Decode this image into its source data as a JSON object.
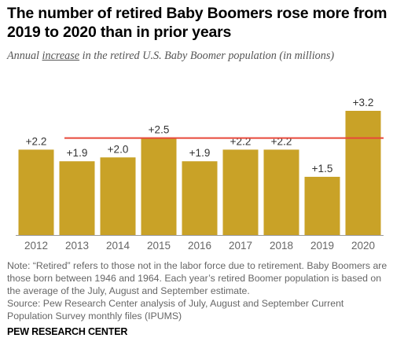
{
  "header": {
    "title": "The number of retired Baby Boomers rose more from 2019 to 2020 than in prior years",
    "subtitle_pre": "Annual ",
    "subtitle_emph": "increase",
    "subtitle_post": " in the retired U.S. Baby Boomer population (in millions)"
  },
  "notes": {
    "note": "Note: “Retired” refers to those not in the labor force due to retirement. Baby Boomers are those born between 1946 and 1964. Each year’s retired Boomer population is based on the average of the July, August and September estimate.",
    "source": "Source: Pew Research Center analysis of July, August and September Current Population Survey monthly files (IPUMS)"
  },
  "brand": "PEW RESEARCH CENTER",
  "colors": {
    "bar": "#c9a227",
    "reference_line": "#e8483a",
    "axis": "#999999"
  },
  "chart_data": {
    "type": "bar",
    "title": "The number of retired Baby Boomers rose more from 2019 to 2020 than in prior years",
    "ylabel": "",
    "xlabel": "",
    "ylim": [
      0,
      3.2
    ],
    "categories": [
      "2012",
      "2013",
      "2014",
      "2015",
      "2016",
      "2017",
      "2018",
      "2019",
      "2020"
    ],
    "values": [
      2.2,
      1.9,
      2.0,
      2.5,
      1.9,
      2.2,
      2.2,
      1.5,
      3.2
    ],
    "data_labels": [
      "+2.2",
      "+1.9",
      "+2.0",
      "+2.5",
      "+1.9",
      "+2.2",
      "+2.2",
      "+1.5",
      "+3.2"
    ],
    "reference_line_value": 2.5,
    "grid": false,
    "legend": "none"
  }
}
